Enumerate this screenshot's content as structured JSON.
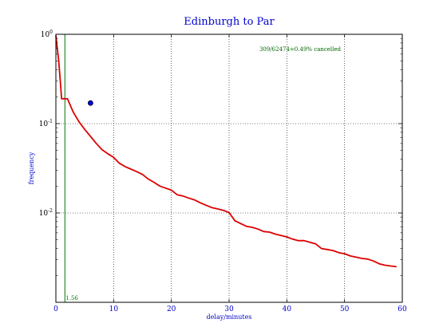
{
  "chart_data": {
    "type": "line",
    "title": "Edinburgh to Par",
    "xlabel": "delay/minutes",
    "ylabel": "frequency",
    "xlim": [
      0,
      60
    ],
    "ylim": [
      0.001,
      1.0
    ],
    "yscale": "log",
    "grid": true,
    "x_ticks": [
      0,
      10,
      20,
      30,
      40,
      50,
      60
    ],
    "y_ticks": [
      {
        "value": 1,
        "base": "10",
        "exp": "0"
      },
      {
        "value": 0.1,
        "base": "10",
        "exp": "-1"
      },
      {
        "value": 0.01,
        "base": "10",
        "exp": "-2"
      }
    ],
    "annotation": "309/62474=0.49% cancelled",
    "vline": {
      "x": 1.56,
      "label": "1.56"
    },
    "marker_point": {
      "x": 6,
      "y": 0.17
    },
    "series": [
      {
        "x": [
          0,
          0.5,
          1,
          2,
          3,
          4,
          5,
          6,
          7,
          8,
          9,
          10,
          11,
          12,
          13,
          14,
          15,
          16,
          17,
          18,
          19,
          20,
          21,
          22,
          23,
          24,
          25,
          26,
          27,
          28,
          29,
          30,
          31,
          32,
          33,
          34,
          35,
          36,
          37,
          38,
          39,
          40,
          41,
          42,
          43,
          44,
          45,
          46,
          47,
          48,
          49,
          50,
          51,
          52,
          53,
          54,
          55,
          56,
          57,
          58,
          59
        ],
        "y": [
          0.97,
          0.5,
          0.19,
          0.19,
          0.135,
          0.105,
          0.086,
          0.072,
          0.06,
          0.051,
          0.046,
          0.042,
          0.036,
          0.033,
          0.031,
          0.029,
          0.027,
          0.024,
          0.022,
          0.02,
          0.019,
          0.018,
          0.016,
          0.0155,
          0.0147,
          0.014,
          0.013,
          0.0122,
          0.0115,
          0.0111,
          0.0107,
          0.0101,
          0.0082,
          0.0076,
          0.0071,
          0.0069,
          0.0066,
          0.0062,
          0.0061,
          0.0058,
          0.0056,
          0.0054,
          0.0051,
          0.0049,
          0.0049,
          0.0047,
          0.0045,
          0.004,
          0.0039,
          0.0038,
          0.0036,
          0.0035,
          0.0033,
          0.0032,
          0.0031,
          0.00305,
          0.0029,
          0.0027,
          0.0026,
          0.00255,
          0.0025
        ],
        "color": "#dd0000"
      }
    ]
  }
}
